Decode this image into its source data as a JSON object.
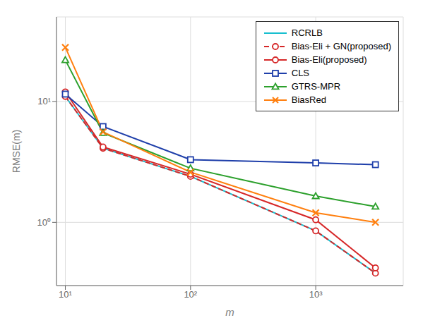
{
  "chart_data": {
    "type": "line",
    "log": true,
    "grid": true,
    "legend": "upper right",
    "xlabel": "m",
    "ylabel": "RMSE(m)",
    "x": [
      10,
      20,
      100,
      1000,
      3000
    ],
    "xlim": [
      8.5,
      5000
    ],
    "ylim": [
      0.3,
      50
    ],
    "xticks": [
      {
        "value": 10,
        "label": "10¹"
      },
      {
        "value": 100,
        "label": "10²"
      },
      {
        "value": 1000,
        "label": "10³"
      }
    ],
    "yticks": [
      {
        "value": 1,
        "label": "10⁰"
      },
      {
        "value": 10,
        "label": "10¹"
      }
    ],
    "series": [
      {
        "name": "RCRLB",
        "color": "#17becf",
        "line_style": "solid",
        "values": [
          11.0,
          4.1,
          2.4,
          0.85,
          0.38
        ]
      },
      {
        "name": "Bias-Eli + GN(proposed)",
        "color": "#d62728",
        "marker": "o",
        "line_style": "dashed",
        "values": [
          11.0,
          4.1,
          2.4,
          0.85,
          0.38
        ]
      },
      {
        "name": "Bias-Eli(proposed)",
        "color": "#d62728",
        "marker": "o",
        "line_style": "solid",
        "values": [
          12.0,
          4.2,
          2.5,
          1.05,
          0.42
        ]
      },
      {
        "name": "CLS",
        "color": "#1f3faa",
        "marker": "s",
        "line_style": "solid",
        "values": [
          11.5,
          6.2,
          3.3,
          3.1,
          3.0
        ]
      },
      {
        "name": "GTRS-MPR",
        "color": "#2ca02c",
        "marker": "^",
        "line_style": "solid",
        "values": [
          22.0,
          5.5,
          2.8,
          1.65,
          1.35
        ]
      },
      {
        "name": "BiasRed",
        "color": "#ff7f0e",
        "marker": "x",
        "line_style": "solid",
        "values": [
          28.0,
          5.6,
          2.6,
          1.2,
          1.0
        ]
      }
    ]
  }
}
